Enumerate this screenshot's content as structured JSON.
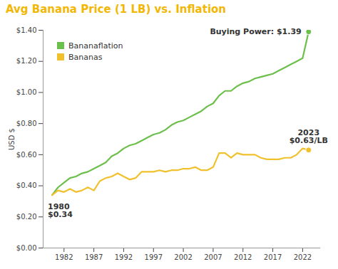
{
  "chart_data": {
    "type": "line",
    "title": "Avg Banana Price (1 LB) vs. Inflation",
    "y_label": "USD $",
    "x": [
      1980,
      1981,
      1982,
      1983,
      1984,
      1985,
      1986,
      1987,
      1988,
      1989,
      1990,
      1991,
      1992,
      1993,
      1994,
      1995,
      1996,
      1997,
      1998,
      1999,
      2000,
      2001,
      2002,
      2003,
      2004,
      2005,
      2006,
      2007,
      2008,
      2009,
      2010,
      2011,
      2012,
      2013,
      2014,
      2015,
      2016,
      2017,
      2018,
      2019,
      2020,
      2021,
      2022,
      2023
    ],
    "series": [
      {
        "name": "Bananaflation",
        "color": "#6dbf4b",
        "marker": "end",
        "values": [
          0.34,
          0.39,
          0.42,
          0.45,
          0.46,
          0.48,
          0.49,
          0.51,
          0.53,
          0.55,
          0.59,
          0.61,
          0.64,
          0.66,
          0.67,
          0.69,
          0.71,
          0.73,
          0.74,
          0.76,
          0.79,
          0.81,
          0.82,
          0.84,
          0.86,
          0.88,
          0.91,
          0.93,
          0.98,
          1.01,
          1.01,
          1.04,
          1.06,
          1.07,
          1.09,
          1.1,
          1.11,
          1.12,
          1.14,
          1.16,
          1.18,
          1.2,
          1.22,
          1.39
        ]
      },
      {
        "name": "Bananas",
        "color": "#f0c12c",
        "marker": "end",
        "values": [
          0.34,
          0.37,
          0.36,
          0.38,
          0.36,
          0.37,
          0.39,
          0.37,
          0.43,
          0.45,
          0.46,
          0.48,
          0.46,
          0.44,
          0.45,
          0.49,
          0.49,
          0.49,
          0.5,
          0.49,
          0.5,
          0.5,
          0.51,
          0.51,
          0.52,
          0.5,
          0.5,
          0.52,
          0.61,
          0.61,
          0.58,
          0.61,
          0.6,
          0.6,
          0.6,
          0.58,
          0.57,
          0.57,
          0.57,
          0.58,
          0.58,
          0.6,
          0.64,
          0.63
        ]
      }
    ],
    "xlim": [
      1978.5,
      2025
    ],
    "xticks": [
      1982,
      1987,
      1992,
      1997,
      2002,
      2007,
      2012,
      2017,
      2022
    ],
    "ylim": [
      0,
      1.4
    ],
    "yticks": [
      {
        "value": 0,
        "label": "$0.00"
      },
      {
        "value": 0.2,
        "label": "$0.20"
      },
      {
        "value": 0.4,
        "label": "$0.40"
      },
      {
        "value": 0.6,
        "label": "$0.60"
      },
      {
        "value": 0.8,
        "label": "$0.80"
      },
      {
        "value": 1.0,
        "label": "$1.00"
      },
      {
        "value": 1.2,
        "label": "$1.20"
      },
      {
        "value": 1.4,
        "label": "$1.40"
      }
    ],
    "grid": false,
    "legend": "top-left",
    "annotations": [
      {
        "text": "Buying Power: $1.39",
        "x": 2023,
        "y": 1.39
      },
      {
        "text": "2023\n$0.63/LB",
        "x": 2023,
        "y": 0.63
      },
      {
        "text": "1980\n$0.34",
        "x": 1980,
        "y": 0.34
      }
    ]
  }
}
